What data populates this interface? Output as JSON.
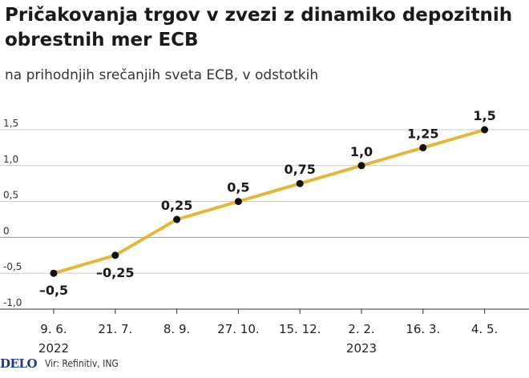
{
  "header": {
    "title": "Pričakovanja trgov v zvezi z dinamiko depozitnih obrestnih mer ECB",
    "subtitle": "na prihodnjih srečanjih sveta ECB, v odstotkih"
  },
  "footer": {
    "logo": "DELO",
    "source": "Vir: Refinitiv, ING"
  },
  "colors": {
    "line": "#e2b73a",
    "marker": "#111111",
    "grid": "#c9c9c9"
  },
  "chart_data": {
    "type": "line",
    "title": "Pričakovanja trgov v zvezi z dinamiko depozitnih obrestnih mer ECB",
    "subtitle": "na prihodnjih srečanjih sveta ECB, v odstotkih",
    "xlabel": "",
    "ylabel": "",
    "categories": [
      "9. 6.",
      "21. 7.",
      "8. 9.",
      "27. 10.",
      "15. 12.",
      "2. 2.",
      "16. 3.",
      "4. 5."
    ],
    "year_labels": [
      {
        "category_index": 0,
        "label": "2022"
      },
      {
        "category_index": 5,
        "label": "2023"
      }
    ],
    "values": [
      -0.5,
      -0.25,
      0.25,
      0.5,
      0.75,
      1.0,
      1.25,
      1.5
    ],
    "data_labels": [
      "–0,5",
      "–0,25",
      "0,25",
      "0,5",
      "0,75",
      "1,0",
      "1,25",
      "1,5"
    ],
    "ylim": [
      -1.0,
      1.5
    ],
    "y_ticks": [
      1.5,
      1.0,
      0.5,
      0,
      -0.5,
      -1.0
    ],
    "y_tick_labels": [
      "1,5",
      "1,0",
      "0,5",
      "0",
      "-0,5",
      "-1,0"
    ],
    "grid": true,
    "legend": "none"
  }
}
